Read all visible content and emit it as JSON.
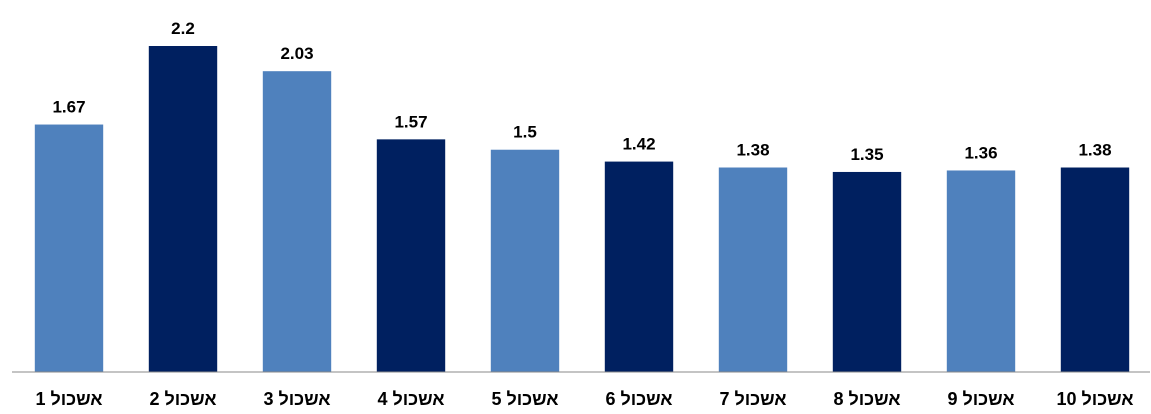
{
  "chart_data": {
    "type": "bar",
    "categories": [
      "אשכול 1",
      "אשכול 2",
      "אשכול 3",
      "אשכול 4",
      "אשכול 5",
      "אשכול 6",
      "אשכול 7",
      "אשכול 8",
      "אשכול 9",
      "אשכול 10"
    ],
    "values": [
      1.67,
      2.2,
      2.03,
      1.57,
      1.5,
      1.42,
      1.38,
      1.35,
      1.36,
      1.38
    ],
    "colors": [
      "#4f81bd",
      "#002060",
      "#4f81bd",
      "#002060",
      "#4f81bd",
      "#002060",
      "#4f81bd",
      "#002060",
      "#4f81bd",
      "#002060"
    ],
    "ylim": [
      0,
      2.2
    ]
  }
}
